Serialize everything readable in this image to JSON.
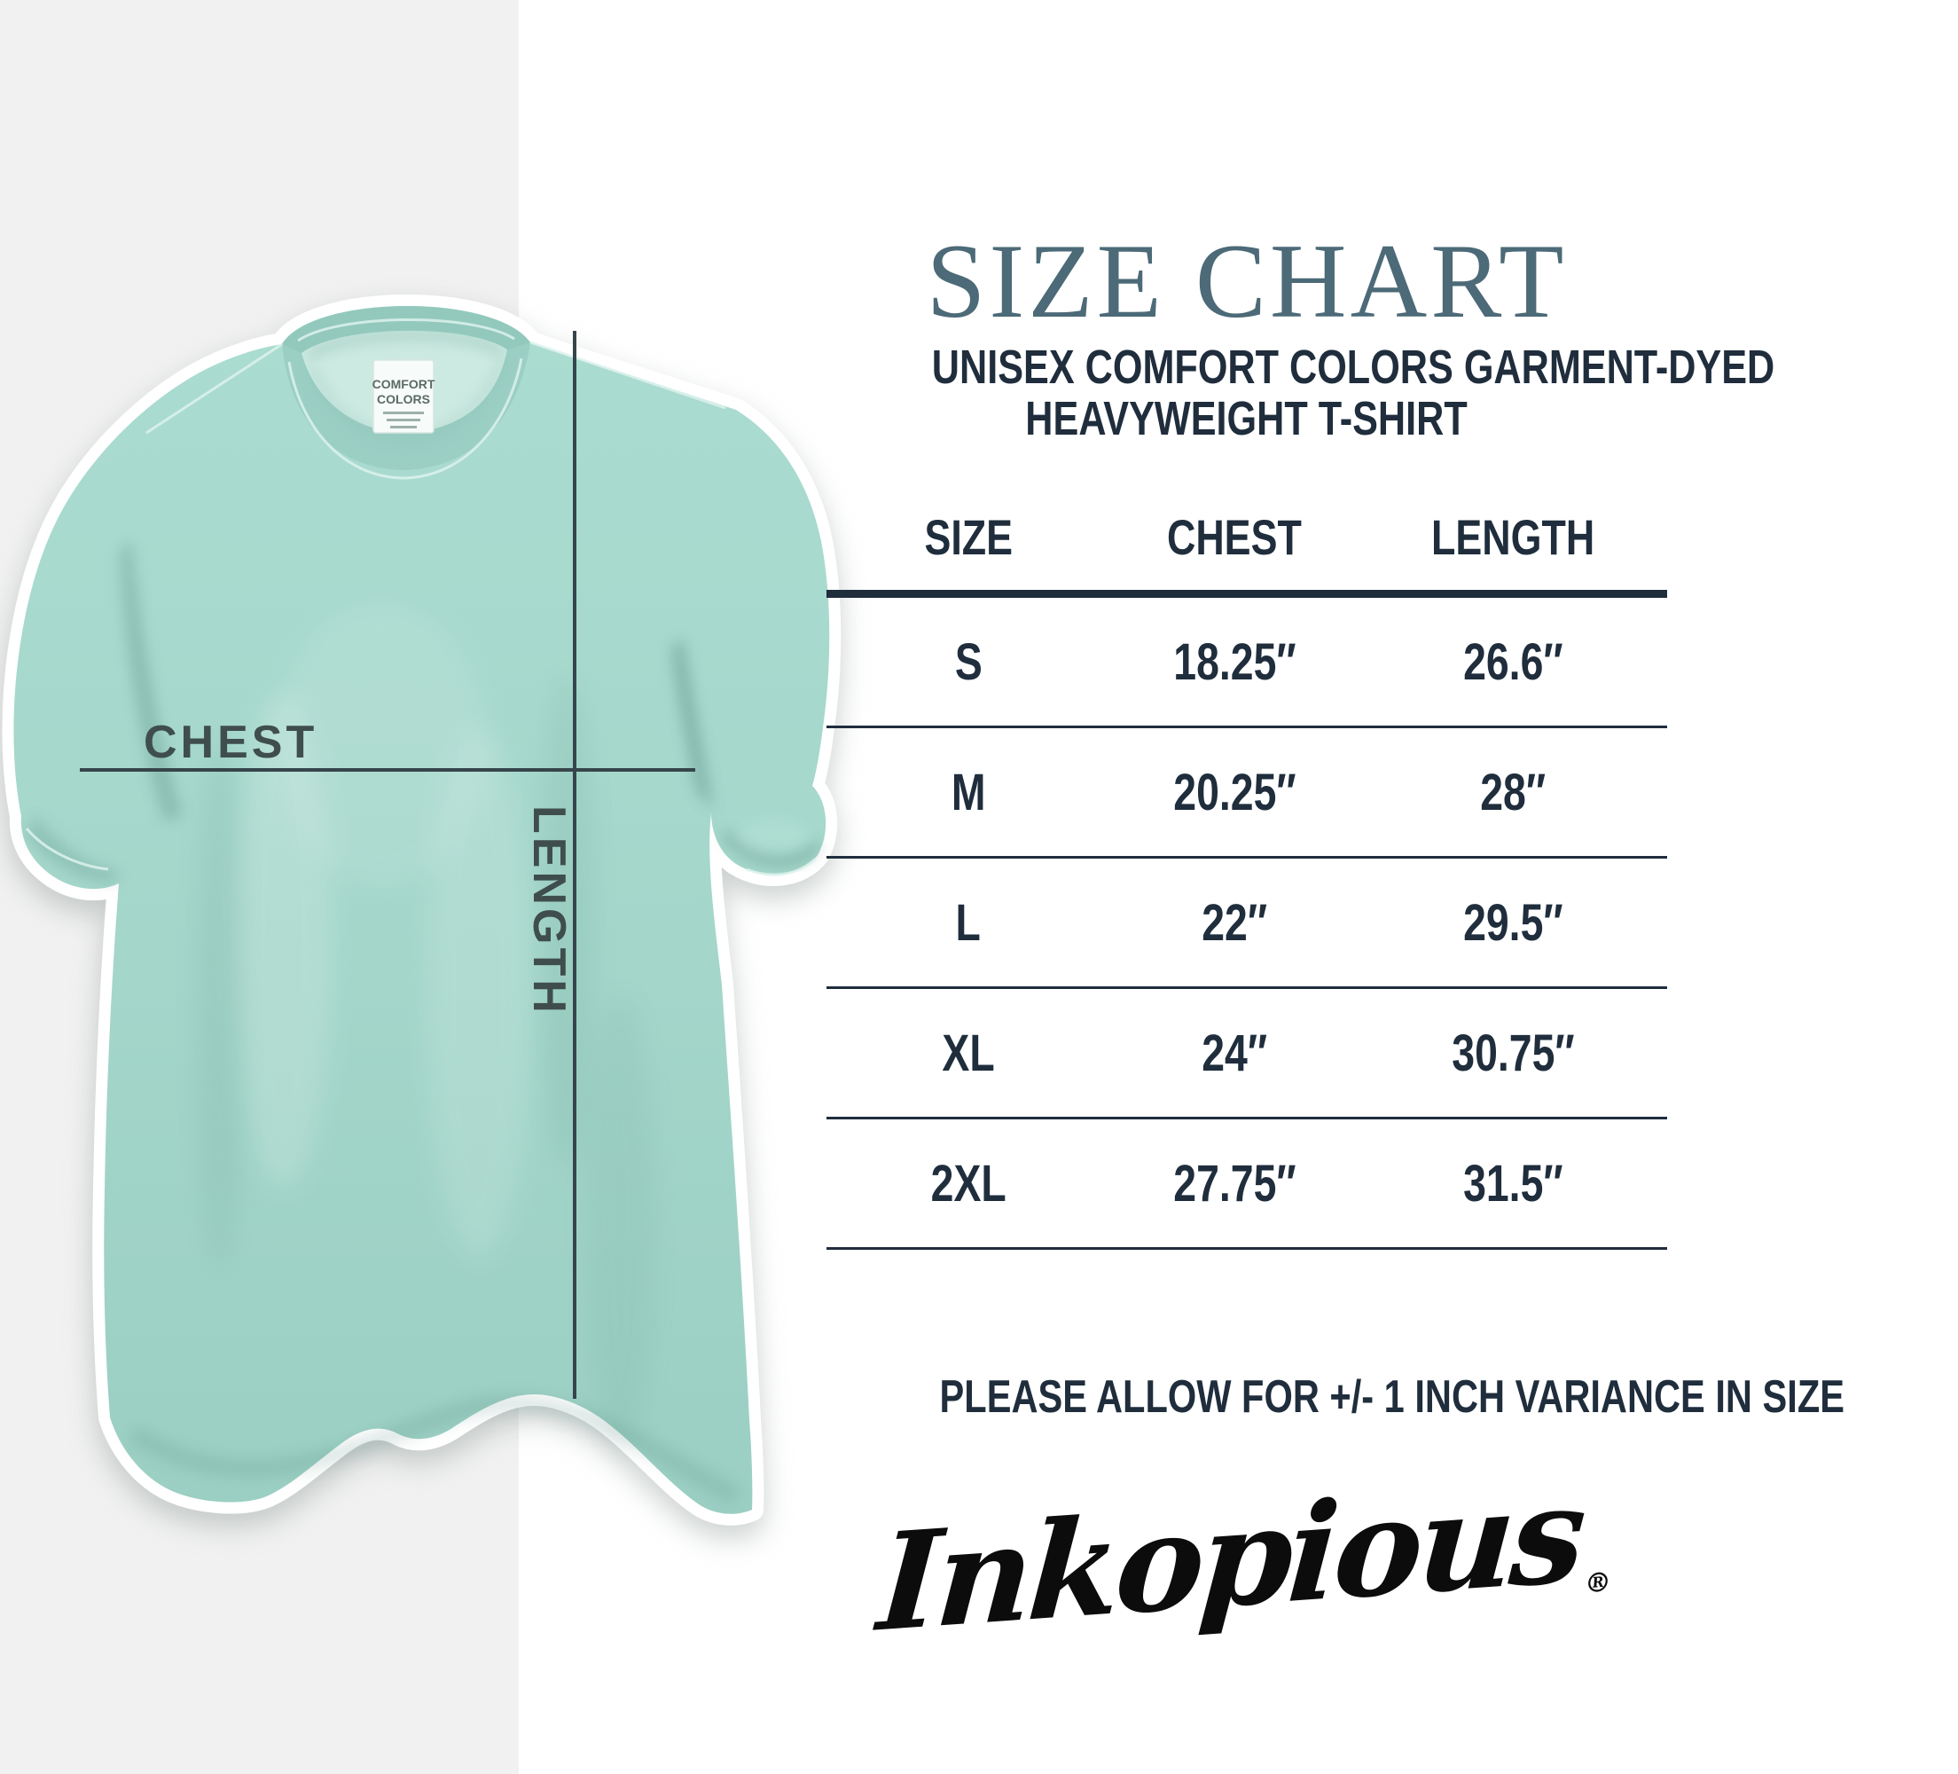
{
  "colors": {
    "gray_strip": "#f1f1f1",
    "shirt_mint": "#a6d7cc",
    "shirt_mint_dark": "#93c9bd",
    "shirt_inside": "#cdeae2",
    "navy_text": "#1f2d3c",
    "title_slate": "#4c6a77",
    "measure_line": "#36454b",
    "measure_label": "#3f4e4d",
    "brand_black": "#0c0c0c",
    "outline_white": "#ffffff"
  },
  "shirt": {
    "neck_label": {
      "line1": "COMFORT",
      "line2": "COLORS"
    },
    "chest_label": "CHEST",
    "length_label": "LENGTH"
  },
  "panel": {
    "title": "SIZE CHART",
    "subtitle_line1": "UNISEX COMFORT COLORS GARMENT-DYED",
    "subtitle_line2": "HEAVYWEIGHT T-SHIRT",
    "table": {
      "headers": [
        "SIZE",
        "CHEST",
        "LENGTH"
      ],
      "rows": [
        [
          "S",
          "18.25″",
          "26.6″"
        ],
        [
          "M",
          "20.25″",
          "28″"
        ],
        [
          "L",
          "22″",
          "29.5″"
        ],
        [
          "XL",
          "24″",
          "30.75″"
        ],
        [
          "2XL",
          "27.75″",
          "31.5″"
        ]
      ]
    },
    "note": "PLEASE ALLOW FOR +/- 1 INCH VARIANCE IN SIZE",
    "brand": {
      "name": "Inkopious",
      "registered": "®"
    }
  }
}
